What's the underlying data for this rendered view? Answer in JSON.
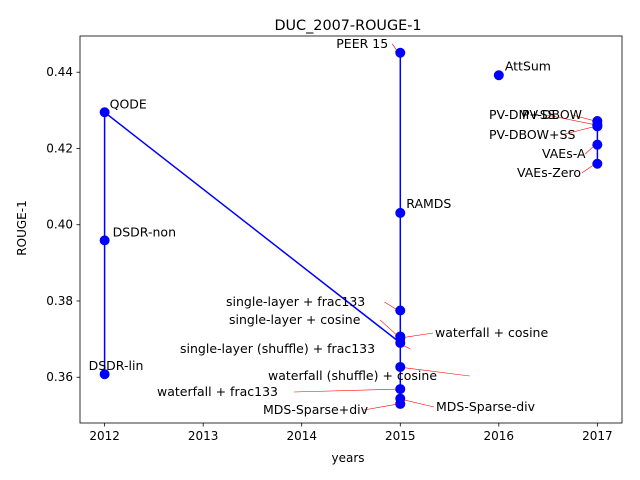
{
  "chart_data": {
    "type": "scatter",
    "title": "DUC_2007-ROUGE-1",
    "xlabel": "years",
    "ylabel": "ROUGE-1",
    "xlim": [
      2011.75,
      2017.25
    ],
    "ylim": [
      0.348,
      0.4495
    ],
    "x_ticks": [
      2012,
      2013,
      2014,
      2015,
      2016,
      2017
    ],
    "y_ticks": [
      0.36,
      0.38,
      0.4,
      0.42,
      0.44
    ],
    "y_tick_labels": [
      "0.36",
      "0.38",
      "0.40",
      "0.42",
      "0.44"
    ],
    "grid": false,
    "line_color": "#0000ff",
    "marker_color": "#0000ff",
    "arrow_color": "#ff0000",
    "points": [
      {
        "label": "QODE",
        "x": 2012,
        "y": 0.4295
      },
      {
        "label": "DSDR-non",
        "x": 2012,
        "y": 0.3959
      },
      {
        "label": "DSDR-lin",
        "x": 2012,
        "y": 0.3608
      },
      {
        "label": "PEER 15",
        "x": 2015,
        "y": 0.4451
      },
      {
        "label": "RAMDS",
        "x": 2015,
        "y": 0.4031
      },
      {
        "label": "single-layer + frac133",
        "x": 2015,
        "y": 0.3775
      },
      {
        "label": "single-layer + cosine",
        "x": 2015,
        "y": 0.3707
      },
      {
        "label": "waterfall + cosine",
        "x": 2015,
        "y": 0.3702
      },
      {
        "label": "single-layer (shuffle) + frac133",
        "x": 2015,
        "y": 0.369
      },
      {
        "label": "waterfall (shuffle) + cosine",
        "x": 2015,
        "y": 0.3627
      },
      {
        "label": "waterfall + frac133",
        "x": 2015,
        "y": 0.3569
      },
      {
        "label": "MDS-Sparse-div",
        "x": 2015,
        "y": 0.3544
      },
      {
        "label": "MDS-Sparse+div",
        "x": 2015,
        "y": 0.353
      },
      {
        "label": "AttSum",
        "x": 2016,
        "y": 0.4392
      },
      {
        "label": "PV-DBOW",
        "x": 2017,
        "y": 0.4272
      },
      {
        "label": "PV-DM+SS",
        "x": 2017,
        "y": 0.4262
      },
      {
        "label": "PV-DBOW+SS",
        "x": 2017,
        "y": 0.4258
      },
      {
        "label": "VAEs-A",
        "x": 2017,
        "y": 0.421
      },
      {
        "label": "VAEs-Zero",
        "x": 2017,
        "y": 0.416
      }
    ],
    "line_path": [
      {
        "x": 2012,
        "y": 0.3608
      },
      {
        "x": 2012,
        "y": 0.3959
      },
      {
        "x": 2012,
        "y": 0.4295
      },
      {
        "x": 2015,
        "y": 0.369
      },
      {
        "x": 2015,
        "y": 0.353
      },
      {
        "x": 2015,
        "y": 0.4451
      }
    ],
    "line_path_2": [
      {
        "x": 2017,
        "y": 0.416
      },
      {
        "x": 2017,
        "y": 0.4272
      }
    ]
  }
}
